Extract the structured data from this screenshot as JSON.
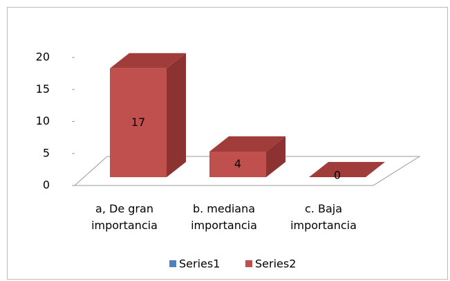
{
  "chart_data": {
    "type": "bar3d",
    "categories": [
      "a,  De gran importancia",
      "b. mediana importancia",
      "c. Baja importancia"
    ],
    "series": [
      {
        "name": "Series1",
        "color": "#4f81bd",
        "values": [
          null,
          null,
          null
        ]
      },
      {
        "name": "Series2",
        "color": "#c0504d",
        "values": [
          17,
          4,
          0
        ]
      }
    ],
    "ylim": [
      0,
      20
    ],
    "yticks": [
      0,
      5,
      10,
      15,
      20
    ],
    "legend": "bottom"
  }
}
